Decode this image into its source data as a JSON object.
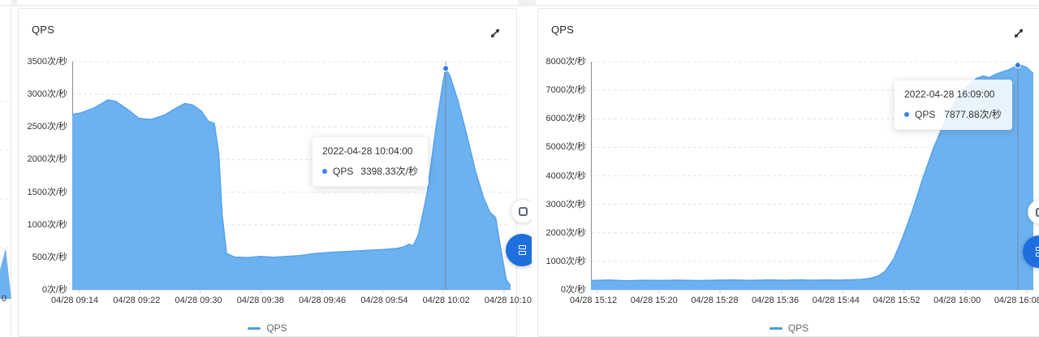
{
  "theme": {
    "area_fill": "#6cb1f0",
    "area_line": "#55a2ee",
    "dot": "#2e7ce0",
    "grid": "#e4e4e4",
    "axis_line": "#8c8c8c",
    "axis_bottom": "#d9d9d9",
    "tick": "#c9c9c9",
    "crosshair": "#7b8794",
    "legend_dash": "#4d9bea",
    "tooltip_dot": "#3b82f6",
    "fab_blue": "#1f6ede"
  },
  "panels": [
    {
      "title": "QPS",
      "legend": "QPS",
      "expand_icon": "expand-arrows-icon",
      "tooltip": {
        "date": "2022-04-28 10:04:00",
        "series": "QPS",
        "value": "3398.33次/秒"
      }
    },
    {
      "title": "QPS",
      "legend": "QPS",
      "expand_icon": "expand-arrows-icon",
      "tooltip": {
        "date": "2022-04-28 16:09:00",
        "series": "QPS",
        "value": "7877.88次/秒"
      }
    }
  ],
  "sliver": {
    "label": "0"
  },
  "chart_data": [
    {
      "type": "area",
      "title": "QPS",
      "legend": [
        "QPS"
      ],
      "legend_position": "bottom",
      "grid": "dashed-horizontal",
      "y_axis": {
        "max": 3500,
        "min": 0,
        "step": 500,
        "unit": "次/秒",
        "labels": [
          "3500次/秒",
          "3000次/秒",
          "2500次/秒",
          "2000次/秒",
          "1500次/秒",
          "1000次/秒",
          "500次/秒",
          "0次/秒"
        ]
      },
      "x_axis": {
        "labels": [
          "04/28 09:14",
          "04/28 09:22",
          "04/28 09:30",
          "04/28 09:38",
          "04/28 09:46",
          "04/28 09:54",
          "04/28 10:02",
          "04/28 10:10"
        ]
      },
      "series": [
        {
          "name": "QPS",
          "points": [
            [
              0,
              2690
            ],
            [
              0.02,
              2715
            ],
            [
              0.05,
              2790
            ],
            [
              0.07,
              2870
            ],
            [
              0.081,
              2915
            ],
            [
              0.1,
              2890
            ],
            [
              0.13,
              2750
            ],
            [
              0.152,
              2630
            ],
            [
              0.18,
              2615
            ],
            [
              0.21,
              2680
            ],
            [
              0.24,
              2800
            ],
            [
              0.257,
              2860
            ],
            [
              0.275,
              2835
            ],
            [
              0.295,
              2740
            ],
            [
              0.31,
              2590
            ],
            [
              0.324,
              2555
            ],
            [
              0.334,
              2100
            ],
            [
              0.342,
              1150
            ],
            [
              0.352,
              560
            ],
            [
              0.37,
              505
            ],
            [
              0.4,
              495
            ],
            [
              0.43,
              515
            ],
            [
              0.46,
              500
            ],
            [
              0.49,
              515
            ],
            [
              0.52,
              525
            ],
            [
              0.55,
              555
            ],
            [
              0.59,
              575
            ],
            [
              0.63,
              590
            ],
            [
              0.67,
              605
            ],
            [
              0.71,
              620
            ],
            [
              0.74,
              635
            ],
            [
              0.757,
              660
            ],
            [
              0.768,
              700
            ],
            [
              0.778,
              680
            ],
            [
              0.79,
              850
            ],
            [
              0.81,
              1500
            ],
            [
              0.83,
              2500
            ],
            [
              0.845,
              3150
            ],
            [
              0.852,
              3398
            ],
            [
              0.862,
              3280
            ],
            [
              0.88,
              2900
            ],
            [
              0.9,
              2380
            ],
            [
              0.92,
              1820
            ],
            [
              0.938,
              1420
            ],
            [
              0.953,
              1190
            ],
            [
              0.966,
              1110
            ],
            [
              0.978,
              620
            ],
            [
              0.99,
              160
            ],
            [
              1,
              60
            ]
          ]
        }
      ],
      "highlight": {
        "t": 0.852,
        "time": "2022-04-28 10:04:00",
        "value": 3398.33,
        "value_label": "3398.33次/秒"
      }
    },
    {
      "type": "area",
      "title": "QPS",
      "legend": [
        "QPS"
      ],
      "legend_position": "bottom",
      "grid": "dashed-horizontal",
      "y_axis": {
        "max": 8000,
        "min": 0,
        "step": 1000,
        "unit": "次/秒",
        "labels": [
          "8000次/秒",
          "7000次/秒",
          "6000次/秒",
          "5000次/秒",
          "4000次/秒",
          "3000次/秒",
          "2000次/秒",
          "1000次/秒",
          "0次/秒"
        ]
      },
      "x_axis": {
        "labels": [
          "04/28 15:12",
          "04/28 15:20",
          "04/28 15:28",
          "04/28 15:36",
          "04/28 15:44",
          "04/28 15:52",
          "04/28 16:00",
          "04/28 16:08"
        ]
      },
      "series": [
        {
          "name": "QPS",
          "points": [
            [
              0,
              330
            ],
            [
              0.04,
              345
            ],
            [
              0.08,
              322
            ],
            [
              0.12,
              338
            ],
            [
              0.16,
              330
            ],
            [
              0.2,
              342
            ],
            [
              0.24,
              328
            ],
            [
              0.28,
              340
            ],
            [
              0.32,
              350
            ],
            [
              0.36,
              335
            ],
            [
              0.4,
              348
            ],
            [
              0.44,
              338
            ],
            [
              0.47,
              352
            ],
            [
              0.5,
              340
            ],
            [
              0.53,
              348
            ],
            [
              0.56,
              342
            ],
            [
              0.59,
              355
            ],
            [
              0.61,
              368
            ],
            [
              0.63,
              400
            ],
            [
              0.648,
              480
            ],
            [
              0.665,
              650
            ],
            [
              0.685,
              1100
            ],
            [
              0.705,
              1850
            ],
            [
              0.725,
              2700
            ],
            [
              0.75,
              3900
            ],
            [
              0.775,
              5000
            ],
            [
              0.8,
              5900
            ],
            [
              0.825,
              6650
            ],
            [
              0.85,
              7150
            ],
            [
              0.872,
              7420
            ],
            [
              0.887,
              7500
            ],
            [
              0.9,
              7440
            ],
            [
              0.915,
              7560
            ],
            [
              0.93,
              7650
            ],
            [
              0.945,
              7720
            ],
            [
              0.957,
              7810
            ],
            [
              0.965,
              7877
            ],
            [
              0.975,
              7860
            ],
            [
              0.985,
              7800
            ],
            [
              1,
              7580
            ]
          ]
        }
      ],
      "highlight": {
        "t": 0.965,
        "time": "2022-04-28 16:09:00",
        "value": 7877.88,
        "value_label": "7877.88次/秒"
      }
    }
  ]
}
